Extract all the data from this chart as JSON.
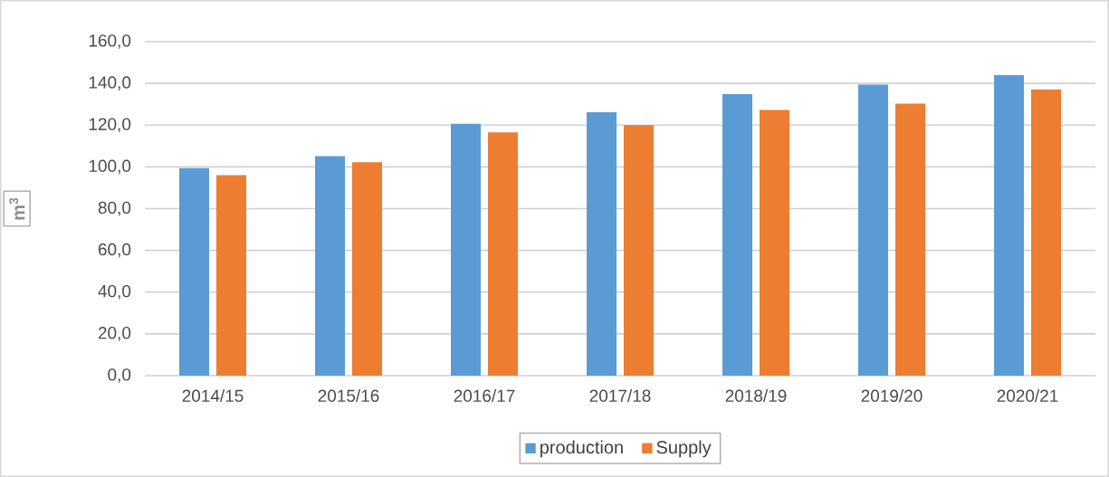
{
  "chart_data": {
    "type": "bar",
    "ylabel": "m$^{3}$",
    "categories": [
      "2014/15",
      "2015/16",
      "2016/17",
      "2017/18",
      "2018/19",
      "2019/20",
      "2020/21"
    ],
    "series": [
      {
        "name": "production",
        "color": "#5b9bd5",
        "values": [
          99.4,
          105.2,
          120.6,
          126.2,
          134.9,
          139.4,
          144.0
        ]
      },
      {
        "name": "Supply",
        "color": "#ed7d31",
        "values": [
          96.1,
          102.2,
          116.5,
          120.0,
          127.3,
          130.3,
          137.1
        ]
      }
    ],
    "ylim": [
      0,
      160
    ],
    "yticks": [
      {
        "value": 0,
        "label": "0,0"
      },
      {
        "value": 20,
        "label": "20,0"
      },
      {
        "value": 40,
        "label": "40,0"
      },
      {
        "value": 60,
        "label": "60,0"
      },
      {
        "value": 80,
        "label": "80,0"
      },
      {
        "value": 100,
        "label": "100,0"
      },
      {
        "value": 120,
        "label": "120,0"
      },
      {
        "value": 140,
        "label": "140,0"
      },
      {
        "value": 160,
        "label": "160,0"
      }
    ],
    "grid": "y",
    "legend": "bottom"
  }
}
